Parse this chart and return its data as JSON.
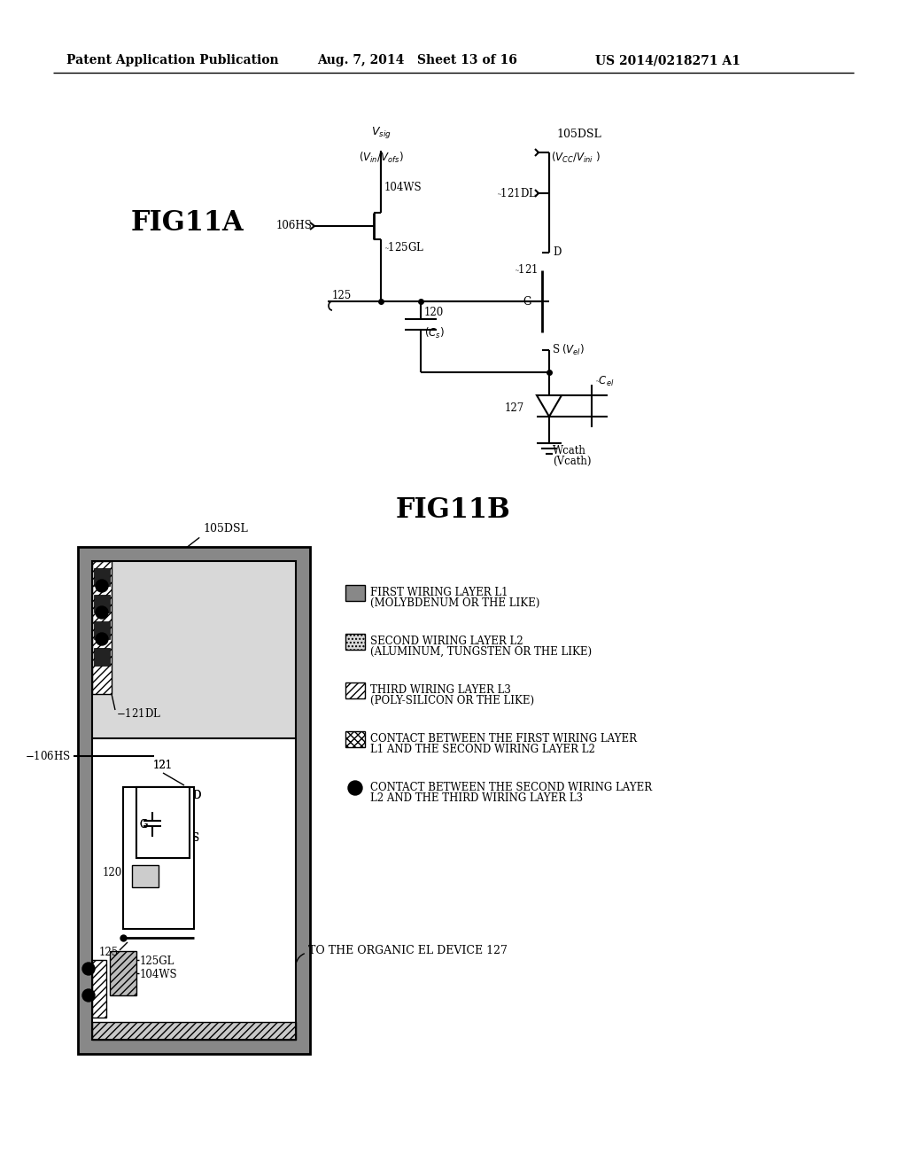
{
  "header_left": "Patent Application Publication",
  "header_mid": "Aug. 7, 2014   Sheet 13 of 16",
  "header_right": "US 2014/0218271 A1",
  "fig11a_label": "FIG11A",
  "fig11b_label": "FIG11B",
  "bg_color": "#ffffff",
  "legend_items": [
    {
      "style": "solid_gray",
      "label1": "FIRST WIRING LAYER L1",
      "label2": "(MOLYBDENUM OR THE LIKE)"
    },
    {
      "style": "gray_dot",
      "label1": "SECOND WIRING LAYER L2",
      "label2": "(ALUMINUM, TUNGSTEN OR THE LIKE)"
    },
    {
      "style": "hatch_diag",
      "label1": "THIRD WIRING LAYER L3",
      "label2": "(POLY-SILICON OR THE LIKE)"
    },
    {
      "style": "hatch_cross",
      "label1": "CONTACT BETWEEN THE FIRST WIRING LAYER",
      "label2": "L1 AND THE SECOND WIRING LAYER L2"
    },
    {
      "style": "black_circle",
      "label1": "CONTACT BETWEEN THE SECOND WIRING LAYER",
      "label2": "L2 AND THE THIRD WIRING LAYER L3"
    }
  ]
}
